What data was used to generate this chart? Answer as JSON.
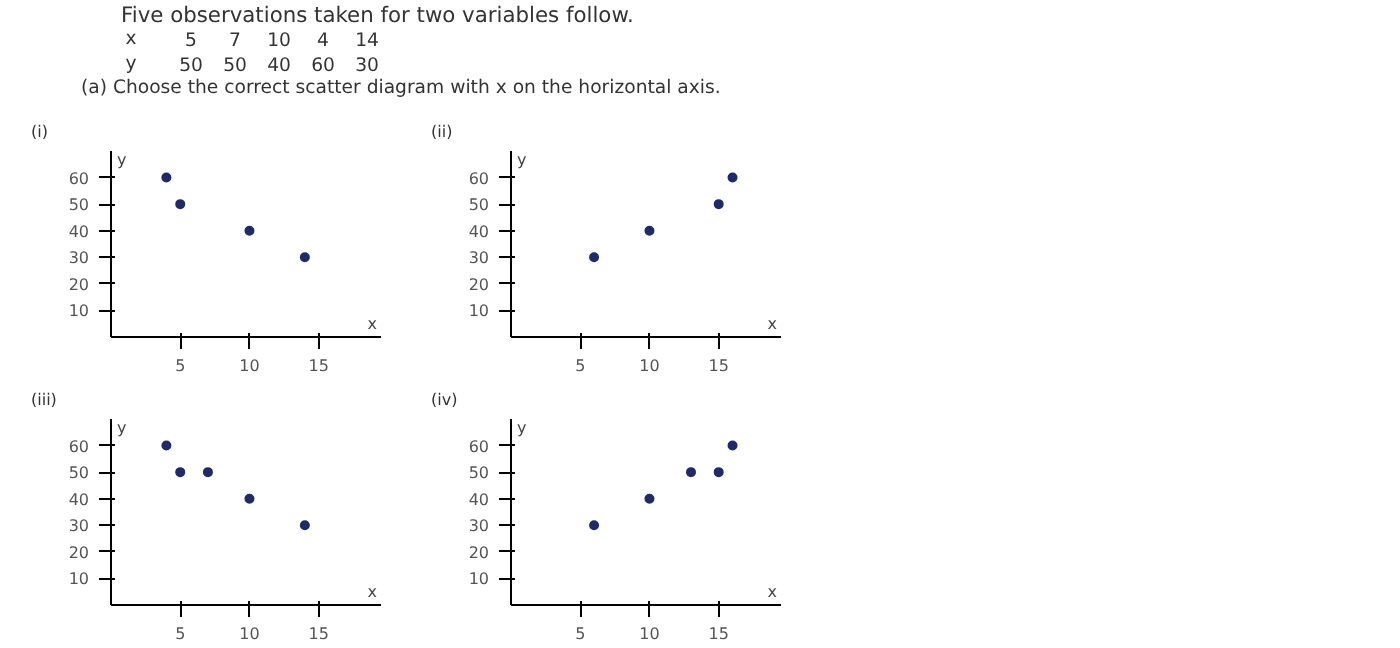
{
  "chart_data": [
    {
      "type": "other",
      "title": "Five observations taken for two variables follow.",
      "annotations": [
        "x",
        "5",
        "7",
        "10",
        "4",
        "14",
        "y",
        "50",
        "50",
        "40",
        "60",
        "30",
        "(a) Choose the correct scatter diagram with x on the horizontal axis."
      ]
    },
    {
      "type": "scatter",
      "title": "(i)",
      "xlabel": "x",
      "ylabel": "y",
      "x": [
        4,
        5,
        10,
        14
      ],
      "values": [
        60,
        50,
        40,
        30
      ],
      "color": "#1f2a6b",
      "marker": "circle",
      "grid": false,
      "xlim": [
        0,
        19.5
      ],
      "ylim": [
        0,
        70
      ],
      "xticks": [
        5,
        10,
        15
      ],
      "yticks": [
        10,
        20,
        30,
        40,
        50,
        60
      ]
    },
    {
      "type": "scatter",
      "title": "(ii)",
      "xlabel": "x",
      "ylabel": "y",
      "x": [
        6,
        10,
        15,
        16
      ],
      "values": [
        30,
        40,
        50,
        60
      ],
      "color": "#1f2a6b",
      "marker": "circle",
      "grid": false,
      "xlim": [
        0,
        19.5
      ],
      "ylim": [
        0,
        70
      ],
      "xticks": [
        5,
        10,
        15
      ],
      "yticks": [
        10,
        20,
        30,
        40,
        50,
        60
      ]
    },
    {
      "type": "scatter",
      "title": "(iii)",
      "xlabel": "x",
      "ylabel": "y",
      "x": [
        4,
        5,
        7,
        10,
        14
      ],
      "values": [
        60,
        50,
        50,
        40,
        30
      ],
      "color": "#1f2a6b",
      "marker": "circle",
      "grid": false,
      "xlim": [
        0,
        19.5
      ],
      "ylim": [
        0,
        70
      ],
      "xticks": [
        5,
        10,
        15
      ],
      "yticks": [
        10,
        20,
        30,
        40,
        50,
        60
      ]
    },
    {
      "type": "scatter",
      "title": "(iv)",
      "xlabel": "x",
      "ylabel": "y",
      "x": [
        6,
        10,
        13,
        15,
        16
      ],
      "values": [
        30,
        40,
        50,
        50,
        60
      ],
      "color": "#1f2a6b",
      "marker": "circle",
      "grid": false,
      "xlim": [
        0,
        19.5
      ],
      "ylim": [
        0,
        70
      ],
      "xticks": [
        5,
        10,
        15
      ],
      "yticks": [
        10,
        20,
        30,
        40,
        50,
        60
      ]
    }
  ]
}
